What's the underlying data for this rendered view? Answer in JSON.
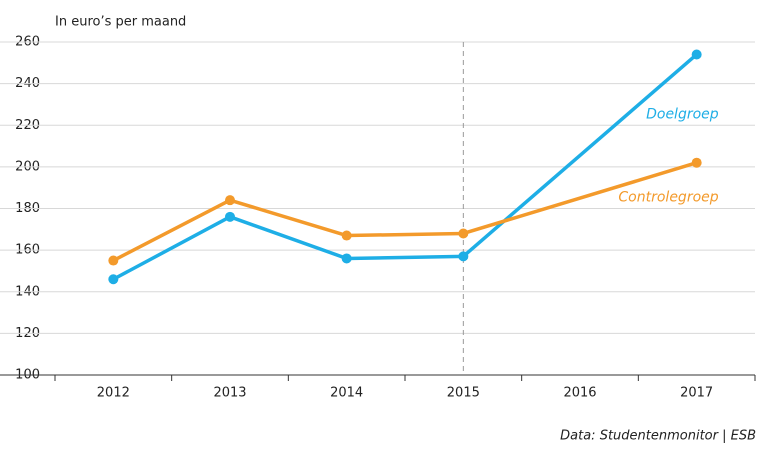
{
  "chart_data": {
    "type": "line",
    "y_label": "In euro’s per maand",
    "source": "Data: Studentenmonitor | ESB",
    "xlim": [
      2011.5,
      2017.5
    ],
    "xticks": [
      2012,
      2013,
      2014,
      2015,
      2016,
      2017
    ],
    "ylim": [
      100,
      260
    ],
    "yticks": [
      100,
      120,
      140,
      160,
      180,
      200,
      220,
      240,
      260
    ],
    "grid": true,
    "vline": 2015,
    "series": [
      {
        "name": "Doelgroep",
        "color": "#1eaee6",
        "x": [
          2012,
          2013,
          2014,
          2015,
          2017
        ],
        "values": [
          146,
          176,
          156,
          157,
          254
        ]
      },
      {
        "name": "Controlegroep",
        "color": "#f39a2b",
        "x": [
          2012,
          2013,
          2014,
          2015,
          2017
        ],
        "values": [
          155,
          184,
          167,
          168,
          202
        ]
      }
    ]
  }
}
